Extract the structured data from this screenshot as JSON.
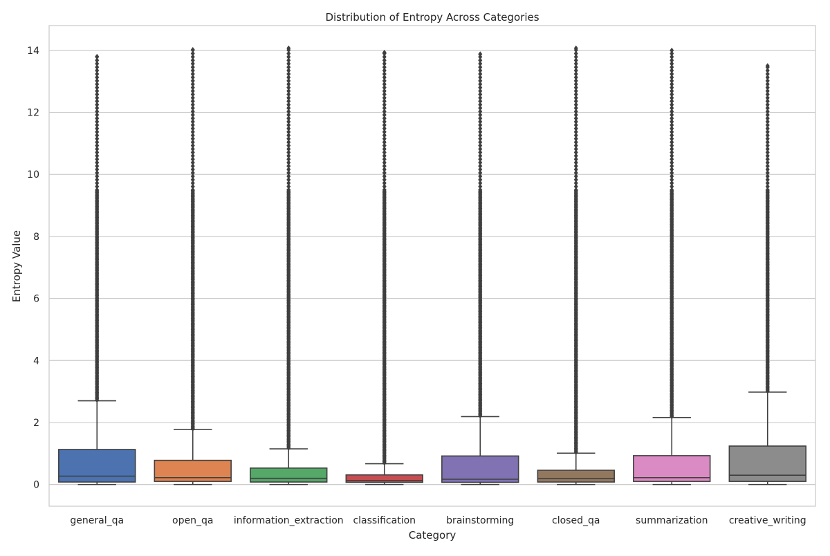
{
  "chart_data": {
    "type": "box",
    "title": "Distribution of Entropy Across Categories",
    "xlabel": "Category",
    "ylabel": "Entropy Value",
    "ylim": [
      -0.7,
      14.8
    ],
    "yticks": [
      0,
      2,
      4,
      6,
      8,
      10,
      12,
      14
    ],
    "grid": true,
    "categories": [
      "general_qa",
      "open_qa",
      "information_extraction",
      "classification",
      "brainstorming",
      "closed_qa",
      "summarization",
      "creative_writing"
    ],
    "colors": [
      "#4c72b0",
      "#dd8452",
      "#55a868",
      "#c44e52",
      "#8172b3",
      "#937860",
      "#da8bc3",
      "#8c8c8c"
    ],
    "outlier_color": "#3f3f3f",
    "series": [
      {
        "category": "general_qa",
        "whisker_low": 0.0,
        "q1": 0.08,
        "median": 0.27,
        "q3": 1.13,
        "whisker_high": 2.7,
        "outlier_max": 13.8
      },
      {
        "category": "open_qa",
        "whisker_low": 0.0,
        "q1": 0.1,
        "median": 0.22,
        "q3": 0.78,
        "whisker_high": 1.77,
        "outlier_max": 14.02
      },
      {
        "category": "information_extraction",
        "whisker_low": 0.0,
        "q1": 0.08,
        "median": 0.2,
        "q3": 0.53,
        "whisker_high": 1.15,
        "outlier_max": 14.07
      },
      {
        "category": "classification",
        "whisker_low": 0.0,
        "q1": 0.07,
        "median": 0.13,
        "q3": 0.31,
        "whisker_high": 0.67,
        "outlier_max": 13.93
      },
      {
        "category": "brainstorming",
        "whisker_low": 0.0,
        "q1": 0.07,
        "median": 0.17,
        "q3": 0.92,
        "whisker_high": 2.19,
        "outlier_max": 13.88
      },
      {
        "category": "closed_qa",
        "whisker_low": 0.0,
        "q1": 0.08,
        "median": 0.19,
        "q3": 0.46,
        "whisker_high": 1.01,
        "outlier_max": 14.07
      },
      {
        "category": "summarization",
        "whisker_low": 0.0,
        "q1": 0.1,
        "median": 0.22,
        "q3": 0.93,
        "whisker_high": 2.16,
        "outlier_max": 14.0
      },
      {
        "category": "creative_writing",
        "whisker_low": 0.0,
        "q1": 0.1,
        "median": 0.3,
        "q3": 1.24,
        "whisker_high": 2.98,
        "outlier_max": 13.5
      }
    ]
  }
}
